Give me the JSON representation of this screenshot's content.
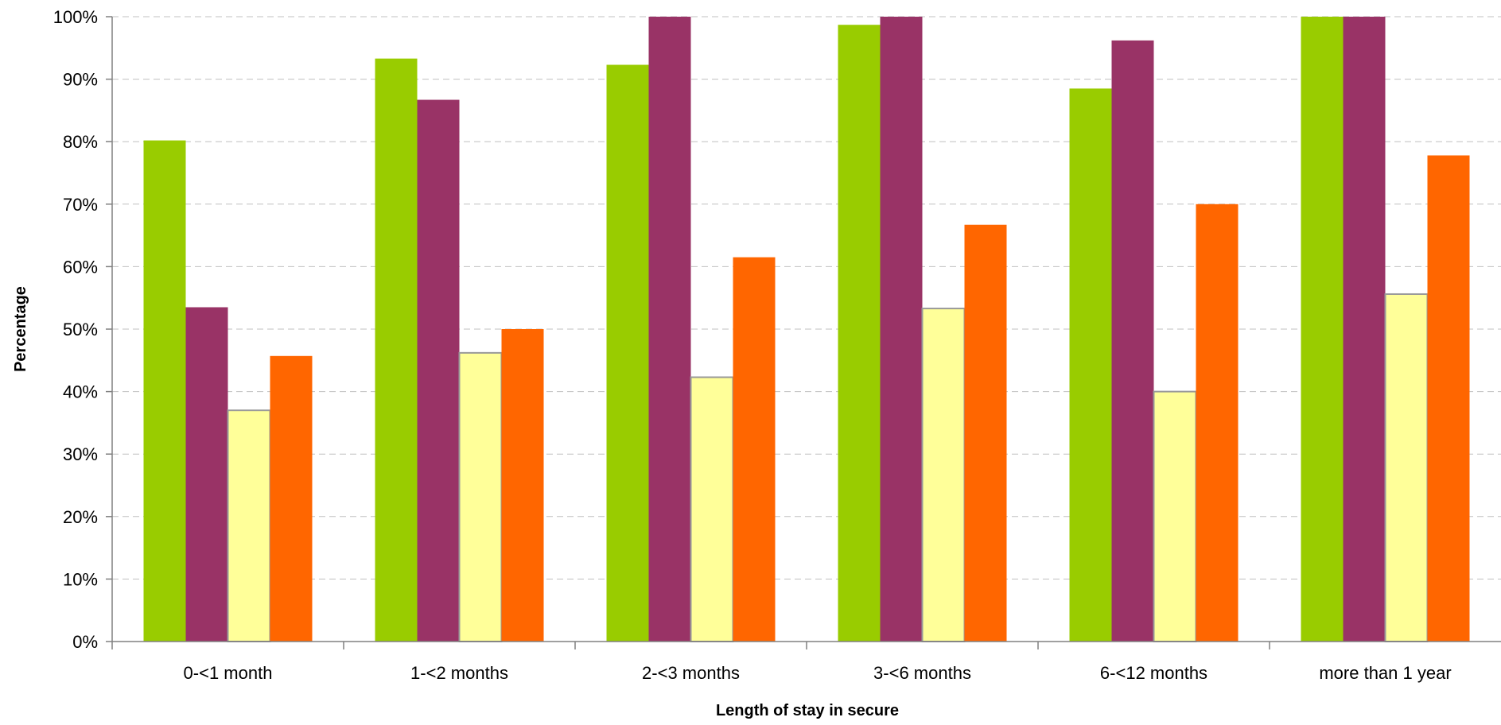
{
  "chart_data": {
    "type": "bar",
    "title": "",
    "xlabel": "Length of stay in secure",
    "ylabel": "Percentage",
    "ylim": [
      0,
      100
    ],
    "y_tick_labels": [
      "0%",
      "10%",
      "20%",
      "30%",
      "40%",
      "50%",
      "60%",
      "70%",
      "80%",
      "90%",
      "100%"
    ],
    "grid": "horizontal dashed",
    "legend": "none",
    "categories": [
      "0-<1 month",
      "1-<2 months",
      "2-<3 months",
      "3-<6 months",
      "6-<12 months",
      "more than 1 year"
    ],
    "series": [
      {
        "color": "#99cc00",
        "values": [
          80.2,
          93.3,
          92.3,
          98.7,
          88.5,
          100
        ]
      },
      {
        "color": "#993366",
        "values": [
          53.5,
          86.7,
          100,
          100,
          96.2,
          100
        ]
      },
      {
        "color": "#ffff99",
        "values": [
          37.0,
          46.2,
          42.3,
          53.3,
          40.0,
          55.6
        ]
      },
      {
        "color": "#ff6600",
        "values": [
          45.7,
          50.0,
          61.5,
          66.7,
          70.0,
          77.8
        ]
      }
    ]
  }
}
